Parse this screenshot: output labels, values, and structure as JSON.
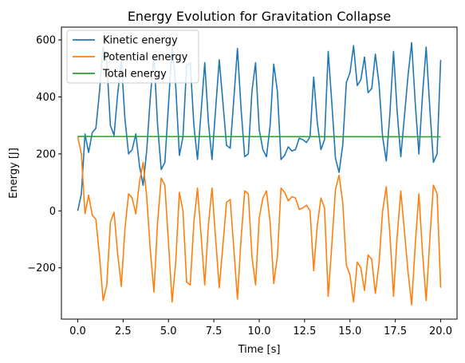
{
  "chart_data": {
    "type": "line",
    "title": "Energy Evolution for Gravitation Collapse",
    "xlabel": "Time [s]",
    "ylabel": "Energy [J]",
    "xlim": [
      -0.9,
      20.9
    ],
    "ylim": [
      -380,
      645
    ],
    "xticks": [
      0.0,
      2.5,
      5.0,
      7.5,
      10.0,
      12.5,
      15.0,
      17.5,
      20.0
    ],
    "xtick_labels": [
      "0.0",
      "2.5",
      "5.0",
      "7.5",
      "10.0",
      "12.5",
      "15.0",
      "17.5",
      "20.0"
    ],
    "yticks": [
      -200,
      0,
      200,
      400,
      600
    ],
    "ytick_labels": [
      "−200",
      "0",
      "200",
      "400",
      "600"
    ],
    "grid": false,
    "legend_position": "top-left",
    "series": [
      {
        "name": "Kinetic energy",
        "color": "#1f77b4",
        "x": [
          0.0,
          0.2,
          0.4,
          0.6,
          0.8,
          1.0,
          1.2,
          1.4,
          1.6,
          1.8,
          2.0,
          2.2,
          2.4,
          2.6,
          2.8,
          3.0,
          3.2,
          3.4,
          3.6,
          3.8,
          4.0,
          4.2,
          4.4,
          4.6,
          4.8,
          5.0,
          5.2,
          5.4,
          5.6,
          5.8,
          6.0,
          6.2,
          6.4,
          6.6,
          6.8,
          7.0,
          7.2,
          7.4,
          7.6,
          7.8,
          8.0,
          8.2,
          8.4,
          8.6,
          8.8,
          9.0,
          9.2,
          9.4,
          9.6,
          9.8,
          10.0,
          10.2,
          10.4,
          10.6,
          10.8,
          11.0,
          11.2,
          11.4,
          11.6,
          11.8,
          12.0,
          12.2,
          12.4,
          12.6,
          12.8,
          13.0,
          13.2,
          13.4,
          13.6,
          13.8,
          14.0,
          14.2,
          14.4,
          14.6,
          14.8,
          15.0,
          15.2,
          15.4,
          15.6,
          15.8,
          16.0,
          16.2,
          16.4,
          16.6,
          16.8,
          17.0,
          17.2,
          17.4,
          17.6,
          17.8,
          18.0,
          18.2,
          18.4,
          18.6,
          18.8,
          19.0,
          19.2,
          19.4,
          19.6,
          19.8,
          20.0
        ],
        "y": [
          0,
          60,
          270,
          205,
          275,
          290,
          420,
          575,
          520,
          300,
          265,
          410,
          525,
          325,
          200,
          215,
          270,
          160,
          90,
          210,
          400,
          545,
          300,
          145,
          170,
          370,
          580,
          440,
          195,
          260,
          510,
          520,
          300,
          180,
          350,
          520,
          310,
          180,
          360,
          530,
          380,
          230,
          220,
          390,
          570,
          360,
          190,
          200,
          420,
          520,
          285,
          215,
          190,
          300,
          515,
          420,
          180,
          195,
          225,
          210,
          215,
          255,
          250,
          240,
          260,
          470,
          310,
          215,
          250,
          560,
          380,
          185,
          135,
          230,
          450,
          485,
          580,
          440,
          460,
          540,
          415,
          430,
          550,
          445,
          260,
          175,
          340,
          560,
          350,
          190,
          330,
          475,
          590,
          375,
          200,
          410,
          575,
          360,
          170,
          200,
          530
        ]
      },
      {
        "name": "Potential energy",
        "color": "#ff7f0e",
        "x": [
          0.0,
          0.2,
          0.4,
          0.6,
          0.8,
          1.0,
          1.2,
          1.4,
          1.6,
          1.8,
          2.0,
          2.2,
          2.4,
          2.6,
          2.8,
          3.0,
          3.2,
          3.4,
          3.6,
          3.8,
          4.0,
          4.2,
          4.4,
          4.6,
          4.8,
          5.0,
          5.2,
          5.4,
          5.6,
          5.8,
          6.0,
          6.2,
          6.4,
          6.6,
          6.8,
          7.0,
          7.2,
          7.4,
          7.6,
          7.8,
          8.0,
          8.2,
          8.4,
          8.6,
          8.8,
          9.0,
          9.2,
          9.4,
          9.6,
          9.8,
          10.0,
          10.2,
          10.4,
          10.6,
          10.8,
          11.0,
          11.2,
          11.4,
          11.6,
          11.8,
          12.0,
          12.2,
          12.4,
          12.6,
          12.8,
          13.0,
          13.2,
          13.4,
          13.6,
          13.8,
          14.0,
          14.2,
          14.4,
          14.6,
          14.8,
          15.0,
          15.2,
          15.4,
          15.6,
          15.8,
          16.0,
          16.2,
          16.4,
          16.6,
          16.8,
          17.0,
          17.2,
          17.4,
          17.6,
          17.8,
          18.0,
          18.2,
          18.4,
          18.6,
          18.8,
          19.0,
          19.2,
          19.4,
          19.6,
          19.8,
          20.0
        ],
        "y": [
          260,
          200,
          -10,
          55,
          -15,
          -30,
          -160,
          -315,
          -260,
          -40,
          -5,
          -150,
          -265,
          -65,
          60,
          45,
          -10,
          100,
          170,
          50,
          -140,
          -285,
          -40,
          115,
          90,
          -110,
          -320,
          -180,
          65,
          0,
          -250,
          -260,
          -40,
          80,
          -90,
          -260,
          -50,
          80,
          -100,
          -270,
          -120,
          30,
          40,
          -130,
          -310,
          -100,
          70,
          60,
          -160,
          -260,
          -25,
          45,
          70,
          -40,
          -255,
          -160,
          80,
          65,
          35,
          50,
          45,
          5,
          10,
          20,
          0,
          -210,
          -50,
          45,
          10,
          -300,
          -120,
          75,
          125,
          30,
          -190,
          -225,
          -320,
          -180,
          -200,
          -280,
          -155,
          -170,
          -290,
          -185,
          0,
          85,
          -80,
          -300,
          -90,
          70,
          -70,
          -215,
          -330,
          -115,
          60,
          -150,
          -315,
          -100,
          90,
          60,
          -270
        ]
      },
      {
        "name": "Total energy",
        "color": "#2ca02c",
        "x": [
          0.0,
          20.0
        ],
        "y": [
          261,
          260
        ]
      }
    ]
  }
}
